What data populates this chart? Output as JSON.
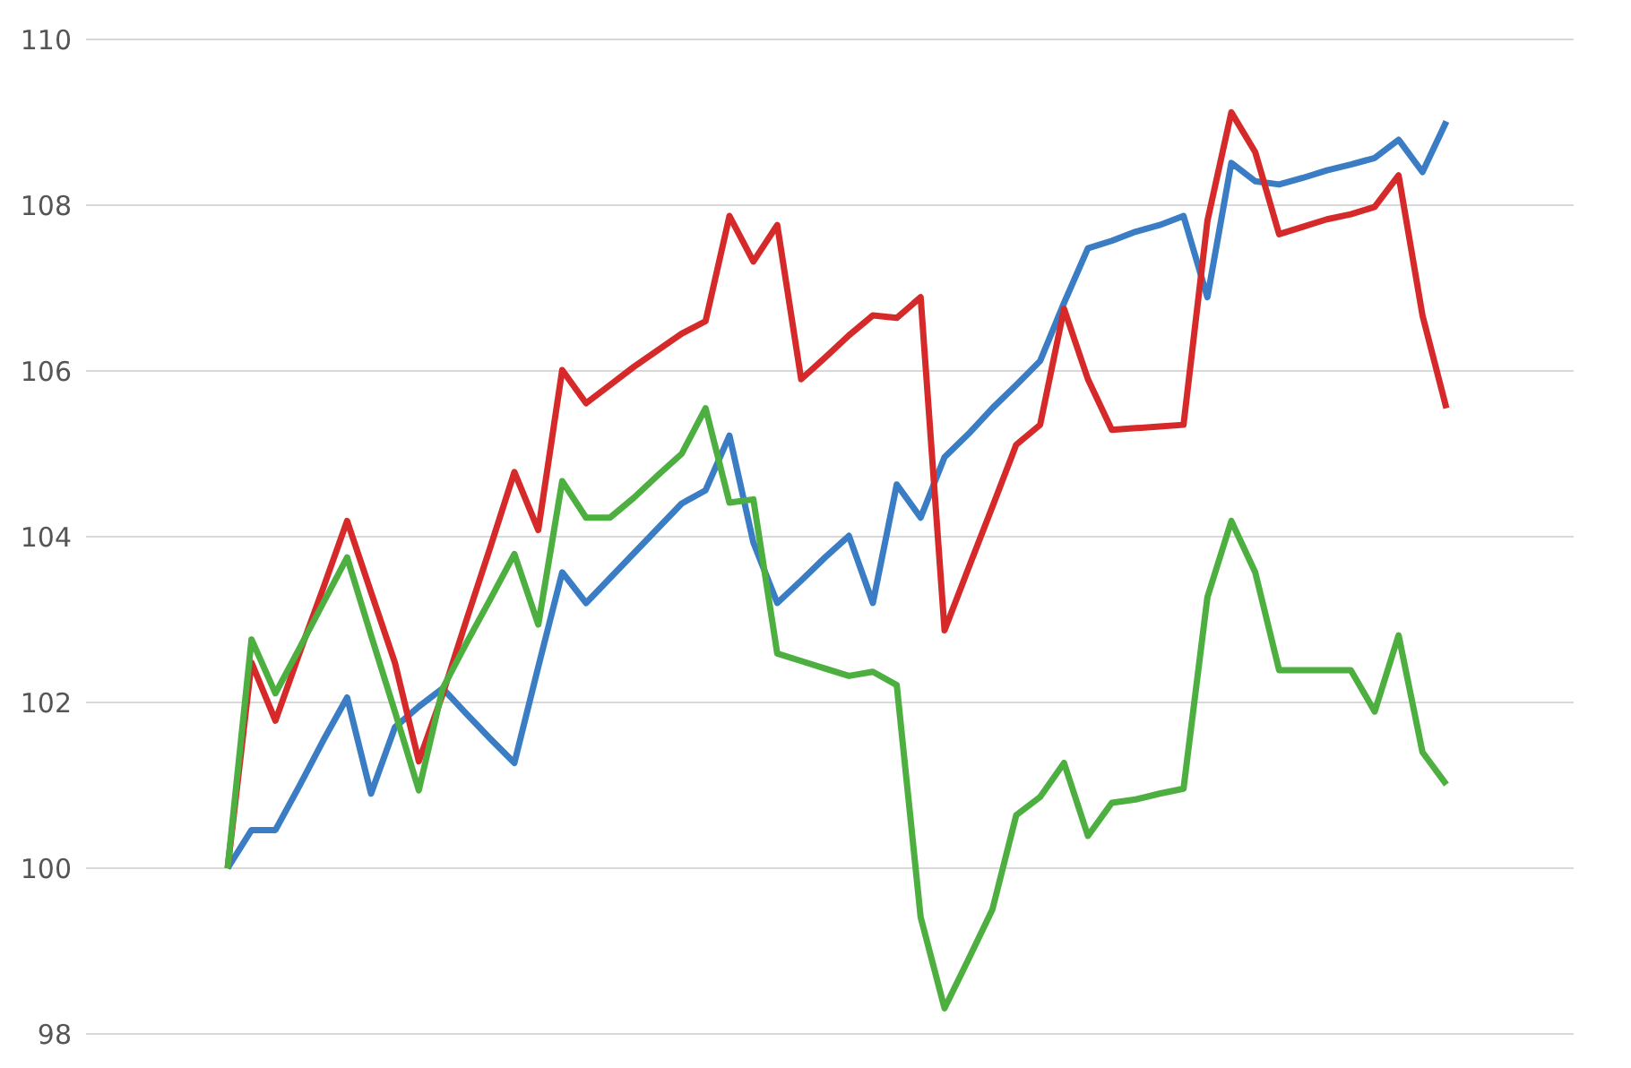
{
  "chart_data": {
    "type": "line",
    "categories": [
      null,
      null,
      null,
      null,
      null,
      null,
      null,
      null,
      null,
      null,
      null,
      null,
      null,
      null,
      null,
      null,
      null,
      null,
      null,
      null,
      null,
      null,
      null,
      null,
      null,
      null,
      null,
      null,
      null,
      null,
      null,
      null,
      null,
      null,
      null,
      null,
      null,
      null,
      null,
      null,
      null,
      null,
      null,
      null,
      null,
      null,
      null,
      null,
      null,
      null,
      null,
      null
    ],
    "series": [
      {
        "color": "#3a7dc4",
        "values": [
          100.0,
          100.46,
          100.46,
          100.99,
          101.54,
          102.06,
          100.9,
          101.7,
          101.95,
          102.17,
          101.86,
          101.56,
          101.27,
          102.43,
          103.57,
          103.2,
          103.5,
          103.8,
          104.1,
          104.4,
          104.56,
          105.22,
          103.93,
          103.2,
          103.47,
          103.75,
          104.01,
          103.2,
          104.63,
          104.23,
          104.96,
          105.24,
          105.55,
          105.83,
          106.12,
          106.82,
          107.48,
          107.57,
          107.68,
          107.76,
          107.87,
          106.89,
          108.51,
          108.29,
          108.25,
          108.33,
          108.42,
          108.49,
          108.57,
          108.79,
          108.4,
          109.01
        ]
      },
      {
        "color": "#d62a2a",
        "values": [
          100.0,
          102.48,
          101.78,
          102.59,
          103.38,
          104.19,
          103.33,
          102.48,
          101.29,
          102.1,
          103.0,
          103.88,
          104.78,
          104.08,
          106.01,
          105.61,
          105.83,
          106.05,
          106.25,
          106.45,
          106.6,
          107.87,
          107.32,
          107.76,
          105.9,
          106.16,
          106.43,
          106.67,
          106.64,
          106.89,
          102.87,
          103.62,
          104.36,
          105.11,
          105.35,
          106.75,
          105.9,
          105.29,
          105.31,
          105.33,
          105.35,
          107.81,
          109.12,
          108.64,
          107.65,
          107.74,
          107.83,
          107.89,
          107.98,
          108.36,
          106.67,
          105.55
        ]
      },
      {
        "color": "#4caf3f",
        "values": [
          100.0,
          102.76,
          102.11,
          102.65,
          103.2,
          103.75,
          102.81,
          101.89,
          100.94,
          102.17,
          102.72,
          103.25,
          103.79,
          102.94,
          104.67,
          104.23,
          104.23,
          104.47,
          104.74,
          105.0,
          105.55,
          104.41,
          104.45,
          102.59,
          102.5,
          102.41,
          102.32,
          102.37,
          102.21,
          99.41,
          98.31,
          98.9,
          99.5,
          100.64,
          100.86,
          101.27,
          100.39,
          100.79,
          100.83,
          100.9,
          100.96,
          103.27,
          104.19,
          103.57,
          102.39,
          102.39,
          102.39,
          102.39,
          101.89,
          102.81,
          101.4,
          101.01
        ]
      }
    ],
    "ylim": [
      98,
      110
    ],
    "yticks": [
      98,
      100,
      102,
      104,
      106,
      108,
      110
    ],
    "grid": "y",
    "tick_labels": "y",
    "marker": "none",
    "line_style": "solid"
  }
}
